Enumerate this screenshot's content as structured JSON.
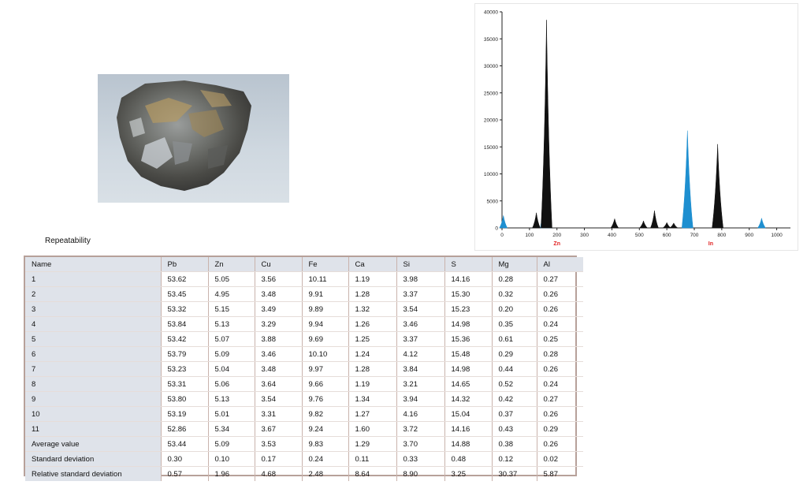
{
  "repeatability_label": "Repeatability",
  "table": {
    "headers": [
      "Name",
      "Pb",
      "Zn",
      "Cu",
      "Fe",
      "Ca",
      "Si",
      "S",
      "Mg",
      "Al"
    ],
    "rows": [
      [
        "1",
        "53.62",
        "5.05",
        "3.56",
        "10.11",
        "1.19",
        "3.98",
        "14.16",
        "0.28",
        "0.27"
      ],
      [
        "2",
        "53.45",
        "4.95",
        "3.48",
        "9.91",
        "1.28",
        "3.37",
        "15.30",
        "0.32",
        "0.26"
      ],
      [
        "3",
        "53.32",
        "5.15",
        "3.49",
        "9.89",
        "1.32",
        "3.54",
        "15.23",
        "0.20",
        "0.26"
      ],
      [
        "4",
        "53.84",
        "5.13",
        "3.29",
        "9.94",
        "1.26",
        "3.46",
        "14.98",
        "0.35",
        "0.24"
      ],
      [
        "5",
        "53.42",
        "5.07",
        "3.88",
        "9.69",
        "1.25",
        "3.37",
        "15.36",
        "0.61",
        "0.25"
      ],
      [
        "6",
        "53.79",
        "5.09",
        "3.46",
        "10.10",
        "1.24",
        "4.12",
        "15.48",
        "0.29",
        "0.28"
      ],
      [
        "7",
        "53.23",
        "5.04",
        "3.48",
        "9.97",
        "1.28",
        "3.84",
        "14.98",
        "0.44",
        "0.26"
      ],
      [
        "8",
        "53.31",
        "5.06",
        "3.64",
        "9.66",
        "1.19",
        "3.21",
        "14.65",
        "0.52",
        "0.24"
      ],
      [
        "9",
        "53.80",
        "5.13",
        "3.54",
        "9.76",
        "1.34",
        "3.94",
        "14.32",
        "0.42",
        "0.27"
      ],
      [
        "10",
        "53.19",
        "5.01",
        "3.31",
        "9.82",
        "1.27",
        "4.16",
        "15.04",
        "0.37",
        "0.26"
      ],
      [
        "11",
        "52.86",
        "5.34",
        "3.67",
        "9.24",
        "1.60",
        "3.72",
        "14.16",
        "0.43",
        "0.29"
      ],
      [
        "Average value",
        "53.44",
        "5.09",
        "3.53",
        "9.83",
        "1.29",
        "3.70",
        "14.88",
        "0.38",
        "0.26"
      ],
      [
        "Standard deviation",
        "0.30",
        "0.10",
        "0.17",
        "0.24",
        "0.11",
        "0.33",
        "0.48",
        "0.12",
        "0.02"
      ],
      [
        "Relative standard deviation",
        "0.57",
        "1.96",
        "4.68",
        "2.48",
        "8.64",
        "8.90",
        "3.25",
        "30.37",
        "5.87"
      ]
    ]
  },
  "chart_data": {
    "type": "area",
    "xlim": [
      0,
      1050
    ],
    "ylim": [
      0,
      40000
    ],
    "x_ticks": [
      "0",
      "100",
      "200",
      "300",
      "400",
      "500",
      "600",
      "700",
      "800",
      "900",
      "1000"
    ],
    "y_ticks": [
      "0",
      "5000",
      "10000",
      "15000",
      "20000",
      "25000",
      "30000",
      "35000",
      "40000"
    ],
    "element_labels": [
      {
        "text": "Zn",
        "x": 200
      },
      {
        "text": "In",
        "x": 760
      }
    ],
    "series": [
      {
        "color": "#1e8fd0",
        "peaks": [
          {
            "x": 5,
            "y": 2300
          },
          {
            "x": 160,
            "y": 12000
          },
          {
            "x": 675,
            "y": 18000
          },
          {
            "x": 945,
            "y": 1800
          }
        ]
      },
      {
        "color": "#111111",
        "peaks": [
          {
            "x": 125,
            "y": 2800
          },
          {
            "x": 162,
            "y": 38500
          },
          {
            "x": 410,
            "y": 1700
          },
          {
            "x": 515,
            "y": 1300
          },
          {
            "x": 555,
            "y": 3200
          },
          {
            "x": 600,
            "y": 1000
          },
          {
            "x": 625,
            "y": 900
          },
          {
            "x": 785,
            "y": 15500
          }
        ]
      }
    ],
    "accent_color": "#e02020"
  }
}
